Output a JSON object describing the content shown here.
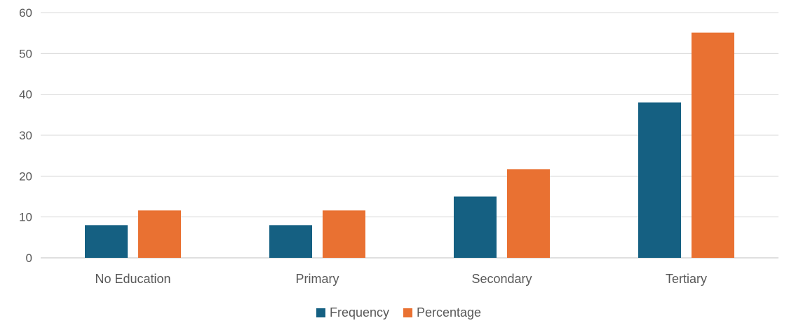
{
  "chart_data": {
    "type": "bar",
    "title": "",
    "xlabel": "",
    "ylabel": "",
    "categories": [
      "No Education",
      "Primary",
      "Secondary",
      "Tertiary"
    ],
    "series": [
      {
        "name": "Frequency",
        "values": [
          8,
          8,
          15,
          38
        ],
        "color": "#156082"
      },
      {
        "name": "Percentage",
        "values": [
          11.6,
          11.6,
          21.7,
          55.1
        ],
        "color": "#E97132"
      }
    ],
    "ylim": [
      0,
      60
    ],
    "yticks": [
      0,
      10,
      20,
      30,
      40,
      50,
      60
    ],
    "grid": true,
    "legend_position": "bottom"
  }
}
